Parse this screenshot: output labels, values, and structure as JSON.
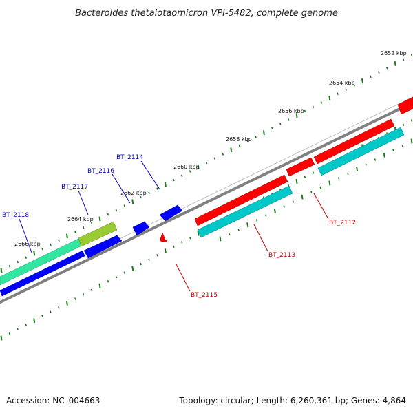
{
  "title": "Bacteroides thetaiotaomicron VPI-5482, complete genome",
  "footer": {
    "accession": "Accession: NC_004663",
    "summary": "Topology: circular; Length: 6,260,361 bp; Genes: 4,864"
  },
  "scale_labels": [
    "2652 kbp",
    "2654 kbp",
    "2656 kbp",
    "2658 kbp",
    "2660 kbp",
    "2662 kbp",
    "2664 kbp",
    "2666 kbp"
  ],
  "genes_reverse": [
    {
      "label": "BT_2114",
      "color": "#0000cc"
    },
    {
      "label": "BT_2116",
      "color": "#0000cc"
    },
    {
      "label": "BT_2117",
      "color": "#0000cc"
    },
    {
      "label": "BT_2118",
      "color": "#0000cc"
    }
  ],
  "genes_forward": [
    {
      "label": "BT_2112",
      "color": "#cc0000"
    },
    {
      "label": "BT_2113",
      "color": "#cc0000"
    },
    {
      "label": "BT_2115",
      "color": "#cc0000"
    }
  ],
  "colors": {
    "backbone": "#808080",
    "forward_strand": "#ff0000",
    "reverse_strand": "#0000ff",
    "cyan_feature": "#00c8c8",
    "green_feature": "#33e6a0",
    "olive_feature": "#99cc33",
    "tick": "#1a7a1a"
  }
}
